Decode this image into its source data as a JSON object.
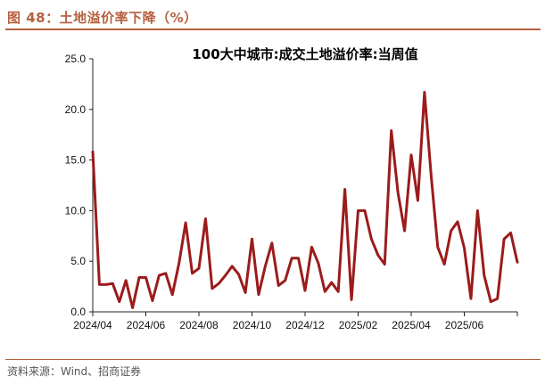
{
  "figure": {
    "label": "图 48：土地溢价率下降（%）",
    "source": "资料来源：Wind、招商证券"
  },
  "chart_data": {
    "type": "line",
    "title": "100大中城市:成交土地溢价率:当周值",
    "xlabel": "",
    "ylabel": "",
    "ylim": [
      0,
      25
    ],
    "y_ticks": [
      "0.0",
      "5.0",
      "10.0",
      "15.0",
      "20.0",
      "25.0"
    ],
    "x_ticks": [
      "2024/04",
      "2024/06",
      "2024/08",
      "2024/10",
      "2024/12",
      "2025/02",
      "2025/04",
      "2025/06"
    ],
    "series": [
      {
        "name": "100大中城市:成交土地溢价率:当周值",
        "color": "#9c1b1b",
        "values": [
          15.8,
          2.7,
          2.7,
          2.8,
          1.0,
          3.1,
          0.4,
          3.4,
          3.4,
          1.1,
          3.6,
          3.8,
          1.7,
          4.8,
          8.8,
          3.8,
          4.3,
          9.2,
          2.3,
          2.8,
          3.6,
          4.5,
          3.7,
          1.9,
          7.2,
          1.7,
          4.5,
          6.8,
          2.6,
          3.1,
          5.3,
          5.3,
          2.1,
          6.4,
          4.8,
          2.0,
          2.9,
          2.0,
          12.1,
          1.2,
          10.0,
          10.0,
          7.2,
          5.6,
          4.7,
          17.9,
          11.8,
          8.0,
          15.5,
          11.0,
          21.7,
          13.5,
          6.4,
          4.7,
          8.0,
          8.9,
          6.3,
          1.3,
          10.0,
          3.6,
          1.0,
          1.3,
          7.2,
          7.8,
          4.9
        ]
      }
    ]
  }
}
